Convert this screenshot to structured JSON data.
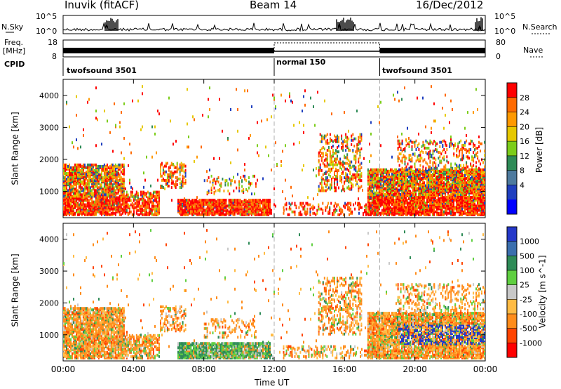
{
  "header": {
    "station": "Inuvik (fitACF)",
    "beam": "Beam 14",
    "date": "16/Dec/2012"
  },
  "strip": {
    "nsky_label": "N.Sky",
    "freq_label_line1": "Freq.",
    "freq_label_line2": "[MHz]",
    "cpid_label": "CPID",
    "nsearch_label": "N.Search",
    "nave_label": "Nave",
    "noise_ticks": [
      "10^5",
      "10^0"
    ],
    "freq_ticks": [
      "18",
      "8"
    ],
    "nave_ticks": [
      "80",
      "0"
    ],
    "cpid_segments": [
      {
        "name": "twofsound 3501",
        "start_hour": 0,
        "end_hour": 12
      },
      {
        "name": "normal 150",
        "start_hour": 12,
        "end_hour": 18
      },
      {
        "name": "twofsound 3501",
        "start_hour": 18,
        "end_hour": 24
      }
    ]
  },
  "chart_data": [
    {
      "type": "heatmap",
      "panel": "power",
      "xlabel": "",
      "ylabel": "Slant Range [km]",
      "colorbar_label": "Power [dB]",
      "colorbar_ticks": [
        "28",
        "24",
        "20",
        "16",
        "12",
        "8",
        "4"
      ],
      "colorbar_colors": [
        "#ff0000",
        "#ff6a00",
        "#ff9900",
        "#e6c800",
        "#7ccd1a",
        "#2e8b57",
        "#4d7a9e",
        "#1f3fbf",
        "#0000ff"
      ],
      "ylim": [
        180,
        4500
      ],
      "y_ticks": [
        "4000",
        "3000",
        "2000",
        "1000"
      ]
    },
    {
      "type": "heatmap",
      "panel": "velocity",
      "xlabel": "Time UT",
      "ylabel": "Slant Range [km]",
      "colorbar_label": "Velocity [m s^-1]",
      "colorbar_ticks": [
        "1000",
        "500",
        "100",
        "25",
        "-25",
        "-100",
        "-500",
        "-1000"
      ],
      "colorbar_colors": [
        "#2538c9",
        "#3b6fae",
        "#2e8b57",
        "#5fcf40",
        "#c8c8c8",
        "#ffbb44",
        "#ff8c1a",
        "#ff4400",
        "#ff0000"
      ],
      "ylim": [
        180,
        4500
      ],
      "x_ticks": [
        "00:00",
        "04:00",
        "08:00",
        "12:00",
        "16:00",
        "20:00",
        "00:00"
      ],
      "y_ticks": [
        "4000",
        "3000",
        "2000",
        "1000"
      ]
    }
  ]
}
